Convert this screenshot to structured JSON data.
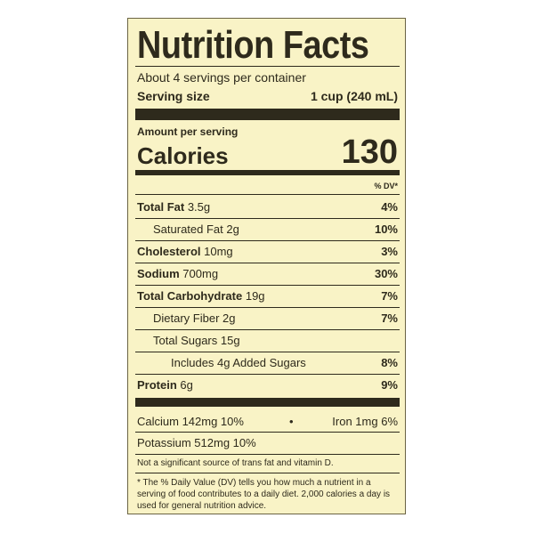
{
  "title": "Nutrition Facts",
  "servings_per_container": "About 4 servings per container",
  "serving_size": {
    "label": "Serving size",
    "value": "1 cup (240 mL)"
  },
  "amount_per_serving": "Amount per serving",
  "calories": {
    "label": "Calories",
    "value": 130
  },
  "dv_header": "% DV*",
  "nutrients": [
    {
      "name": "Total Fat",
      "amount": "3.5g",
      "dv": "4%"
    },
    {
      "name": "Saturated Fat",
      "amount": "2g",
      "dv": "10%"
    },
    {
      "name": "Cholesterol",
      "amount": "10mg",
      "dv": "3%"
    },
    {
      "name": "Sodium",
      "amount": "700mg",
      "dv": "30%"
    },
    {
      "name": "Total Carbohydrate",
      "amount": "19g",
      "dv": "7%"
    },
    {
      "name": "Dietary Fiber",
      "amount": "2g",
      "dv": "7%"
    },
    {
      "name": "Total Sugars",
      "amount": "15g"
    },
    {
      "name": "Includes 4g Added Sugars",
      "dv": "8%"
    },
    {
      "name": "Protein",
      "amount": "6g",
      "dv": "9%"
    }
  ],
  "vitamins": [
    "Calcium 142mg 10%",
    "Iron 1mg 6%",
    "Potassium 512mg 10%"
  ],
  "note": "Not a significant source of trans fat and vitamin D.",
  "footnote": "* The % Daily Value (DV) tells you how much a nutrient in a serving of food contributes to a daily diet. 2,000 calories a day is used for general nutrition advice."
}
